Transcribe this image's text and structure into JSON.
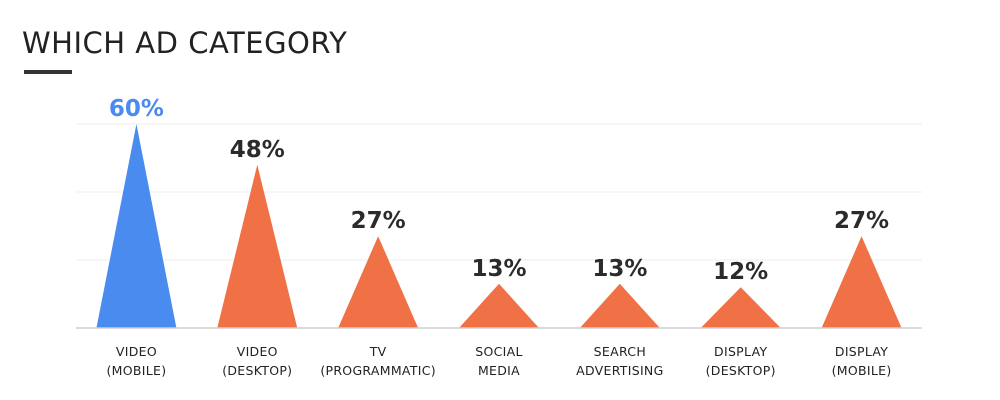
{
  "title": "WHICH AD CATEGORY",
  "colors": {
    "highlight": "#4a8bef",
    "bar": "#ef7145",
    "label": "#2b2b2b",
    "grid": "#ececec",
    "axis": "#cfcfcf"
  },
  "chart_data": {
    "type": "bar",
    "mark_shape": "triangle",
    "title": "WHICH AD CATEGORY",
    "categories": [
      [
        "VIDEO",
        "(MOBILE)"
      ],
      [
        "VIDEO",
        "(DESKTOP)"
      ],
      [
        "TV",
        "(PROGRAMMATIC)"
      ],
      [
        "SOCIAL",
        "MEDIA"
      ],
      [
        "SEARCH",
        "ADVERTISING"
      ],
      [
        "DISPLAY",
        "(DESKTOP)"
      ],
      [
        "DISPLAY",
        "(MOBILE)"
      ]
    ],
    "values": [
      60,
      48,
      27,
      13,
      13,
      12,
      27
    ],
    "value_labels": [
      "60%",
      "48%",
      "27%",
      "13%",
      "13%",
      "12%",
      "27%"
    ],
    "highlight_index": 0,
    "ylim": [
      0,
      60
    ],
    "grid": true,
    "legend": "none"
  }
}
